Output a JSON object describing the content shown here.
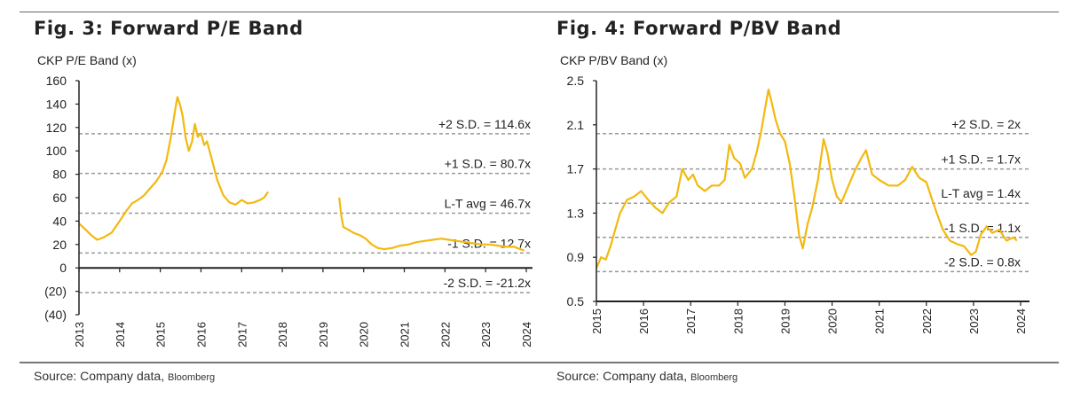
{
  "chart_data": [
    {
      "type": "line",
      "title": "Fig. 3: Forward P/E Band",
      "ylabel": "CKP P/E Band (x)",
      "source": "Source: Company data,",
      "source_small": "Bloomberg",
      "ylim": [
        -40,
        160
      ],
      "xlim": [
        2013,
        2024.25
      ],
      "yticks": [
        160,
        140,
        120,
        100,
        80,
        60,
        40,
        20,
        0,
        -20,
        -40
      ],
      "ytick_labels": [
        "160",
        "140",
        "120",
        "100",
        "80",
        "60",
        "40",
        "20",
        "0",
        "(20)",
        "(40)"
      ],
      "xticks": [
        2013,
        2014,
        2015,
        2016,
        2017,
        2018,
        2019,
        2020,
        2021,
        2022,
        2023,
        2024
      ],
      "xtick_labels": [
        "2013",
        "2014",
        "2015",
        "2016",
        "2017",
        "2018",
        "2019",
        "2020",
        "2021",
        "2022",
        "2023",
        "2024"
      ],
      "line_color": "#F2B90F",
      "band_color": "#999999",
      "bands": [
        {
          "value": 114.6,
          "label": "+2 S.D. = 114.6x"
        },
        {
          "value": 80.7,
          "label": "+1 S.D. = 80.7x"
        },
        {
          "value": 46.7,
          "label": "L-T avg = 46.7x"
        },
        {
          "value": 12.7,
          "label": "-1 S.D. = 12.7x"
        },
        {
          "value": -21.2,
          "label": "-2 S.D. = -21.2x"
        }
      ],
      "segments": [
        [
          [
            2013.0,
            38
          ],
          [
            2013.15,
            33
          ],
          [
            2013.3,
            28
          ],
          [
            2013.45,
            24
          ],
          [
            2013.6,
            26
          ],
          [
            2013.8,
            30
          ],
          [
            2014.0,
            40
          ],
          [
            2014.15,
            48
          ],
          [
            2014.3,
            55
          ],
          [
            2014.45,
            58
          ],
          [
            2014.6,
            62
          ],
          [
            2014.75,
            68
          ],
          [
            2014.9,
            74
          ],
          [
            2015.05,
            82
          ],
          [
            2015.15,
            92
          ],
          [
            2015.25,
            110
          ],
          [
            2015.32,
            125
          ],
          [
            2015.38,
            138
          ],
          [
            2015.42,
            146
          ],
          [
            2015.48,
            140
          ],
          [
            2015.55,
            130
          ],
          [
            2015.62,
            112
          ],
          [
            2015.7,
            100
          ],
          [
            2015.78,
            108
          ],
          [
            2015.85,
            123
          ],
          [
            2015.92,
            112
          ],
          [
            2016.0,
            115
          ],
          [
            2016.08,
            105
          ],
          [
            2016.15,
            108
          ],
          [
            2016.25,
            95
          ],
          [
            2016.4,
            75
          ],
          [
            2016.55,
            62
          ],
          [
            2016.7,
            56
          ],
          [
            2016.85,
            54
          ],
          [
            2017.0,
            58
          ],
          [
            2017.15,
            55
          ],
          [
            2017.3,
            56
          ],
          [
            2017.45,
            58
          ],
          [
            2017.55,
            60
          ],
          [
            2017.65,
            65
          ]
        ],
        [
          [
            2019.4,
            60
          ],
          [
            2019.45,
            45
          ],
          [
            2019.5,
            35
          ],
          [
            2019.6,
            33
          ],
          [
            2019.75,
            30
          ],
          [
            2019.9,
            28
          ],
          [
            2020.05,
            25
          ],
          [
            2020.2,
            20
          ],
          [
            2020.35,
            17
          ],
          [
            2020.5,
            16
          ],
          [
            2020.7,
            17
          ],
          [
            2020.9,
            19
          ],
          [
            2021.1,
            20
          ],
          [
            2021.3,
            22
          ],
          [
            2021.5,
            23
          ],
          [
            2021.7,
            24
          ],
          [
            2021.9,
            25
          ],
          [
            2022.1,
            24
          ],
          [
            2022.3,
            23
          ],
          [
            2022.5,
            22
          ],
          [
            2022.7,
            21
          ],
          [
            2022.9,
            20
          ],
          [
            2023.1,
            20
          ],
          [
            2023.3,
            19
          ],
          [
            2023.5,
            18
          ],
          [
            2023.7,
            18
          ],
          [
            2023.85,
            16
          ],
          [
            2023.95,
            15
          ]
        ]
      ]
    },
    {
      "type": "line",
      "title": "Fig. 4: Forward P/BV Band",
      "ylabel": "CKP P/BV Band (x)",
      "source": "Source: Company data,",
      "source_small": "Bloomberg",
      "ylim": [
        0.5,
        2.5
      ],
      "xlim": [
        2015,
        2024
      ],
      "yticks": [
        2.5,
        2.1,
        1.7,
        1.3,
        0.9,
        0.5
      ],
      "ytick_labels": [
        "2.5",
        "2.1",
        "1.7",
        "1.3",
        "0.9",
        "0.5"
      ],
      "xticks": [
        2015,
        2016,
        2017,
        2018,
        2019,
        2020,
        2021,
        2022,
        2023,
        2024
      ],
      "xtick_labels": [
        "2015",
        "2016",
        "2017",
        "2018",
        "2019",
        "2020",
        "2021",
        "2022",
        "2023",
        "2024"
      ],
      "line_color": "#F2B90F",
      "band_color": "#999999",
      "bands": [
        {
          "value": 2.02,
          "label": "+2 S.D. = 2x"
        },
        {
          "value": 1.7,
          "label": "+1 S.D. = 1.7x"
        },
        {
          "value": 1.39,
          "label": "L-T avg = 1.4x"
        },
        {
          "value": 1.08,
          "label": "-1 S.D. = 1.1x"
        },
        {
          "value": 0.77,
          "label": "-2 S.D. = 0.8x"
        }
      ],
      "segments": [
        [
          [
            2015.0,
            0.8
          ],
          [
            2015.1,
            0.9
          ],
          [
            2015.2,
            0.88
          ],
          [
            2015.3,
            1.0
          ],
          [
            2015.4,
            1.15
          ],
          [
            2015.5,
            1.3
          ],
          [
            2015.65,
            1.42
          ],
          [
            2015.8,
            1.45
          ],
          [
            2015.95,
            1.5
          ],
          [
            2016.1,
            1.42
          ],
          [
            2016.25,
            1.35
          ],
          [
            2016.4,
            1.3
          ],
          [
            2016.55,
            1.4
          ],
          [
            2016.7,
            1.45
          ],
          [
            2016.82,
            1.7
          ],
          [
            2016.95,
            1.6
          ],
          [
            2017.05,
            1.65
          ],
          [
            2017.15,
            1.55
          ],
          [
            2017.3,
            1.5
          ],
          [
            2017.45,
            1.55
          ],
          [
            2017.6,
            1.55
          ],
          [
            2017.72,
            1.6
          ],
          [
            2017.82,
            1.92
          ],
          [
            2017.92,
            1.8
          ],
          [
            2018.05,
            1.75
          ],
          [
            2018.15,
            1.62
          ],
          [
            2018.3,
            1.7
          ],
          [
            2018.4,
            1.85
          ],
          [
            2018.5,
            2.05
          ],
          [
            2018.58,
            2.25
          ],
          [
            2018.65,
            2.42
          ],
          [
            2018.72,
            2.3
          ],
          [
            2018.8,
            2.15
          ],
          [
            2018.9,
            2.02
          ],
          [
            2019.0,
            1.95
          ],
          [
            2019.1,
            1.75
          ],
          [
            2019.2,
            1.45
          ],
          [
            2019.3,
            1.1
          ],
          [
            2019.38,
            0.98
          ],
          [
            2019.48,
            1.2
          ],
          [
            2019.58,
            1.35
          ],
          [
            2019.7,
            1.6
          ],
          [
            2019.82,
            1.97
          ],
          [
            2019.9,
            1.85
          ],
          [
            2020.0,
            1.6
          ],
          [
            2020.1,
            1.45
          ],
          [
            2020.2,
            1.4
          ],
          [
            2020.35,
            1.55
          ],
          [
            2020.5,
            1.7
          ],
          [
            2020.62,
            1.8
          ],
          [
            2020.72,
            1.87
          ],
          [
            2020.85,
            1.65
          ],
          [
            2021.0,
            1.6
          ],
          [
            2021.2,
            1.55
          ],
          [
            2021.4,
            1.55
          ],
          [
            2021.55,
            1.6
          ],
          [
            2021.7,
            1.72
          ],
          [
            2021.85,
            1.62
          ],
          [
            2022.0,
            1.58
          ],
          [
            2022.1,
            1.45
          ],
          [
            2022.22,
            1.3
          ],
          [
            2022.35,
            1.15
          ],
          [
            2022.5,
            1.05
          ],
          [
            2022.65,
            1.02
          ],
          [
            2022.8,
            1.0
          ],
          [
            2022.95,
            0.92
          ],
          [
            2023.05,
            0.95
          ],
          [
            2023.15,
            1.1
          ],
          [
            2023.28,
            1.18
          ],
          [
            2023.4,
            1.12
          ],
          [
            2023.55,
            1.15
          ],
          [
            2023.7,
            1.05
          ],
          [
            2023.85,
            1.08
          ],
          [
            2023.92,
            1.05
          ]
        ]
      ]
    }
  ]
}
